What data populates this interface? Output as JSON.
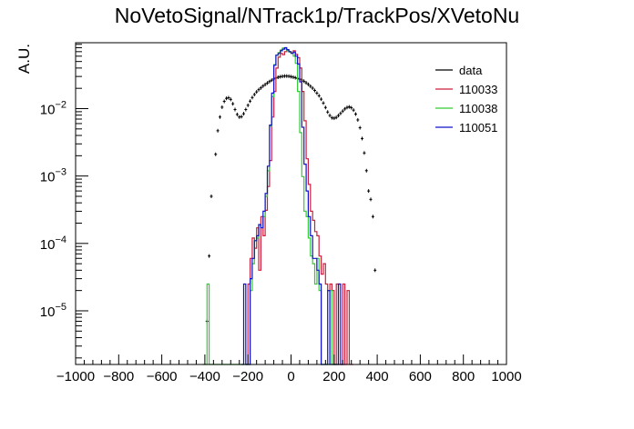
{
  "chart_data": {
    "type": "line",
    "title": "NoVetoSignal/NTrack1p/TrackPos/XVetoNu",
    "xlabel": "",
    "ylabel": "A.U.",
    "xlim": [
      -1000,
      1000
    ],
    "ylim": [
      1.6e-06,
      0.095
    ],
    "yscale": "log",
    "grid": false,
    "legend_position": "top-right",
    "x_ticks": [
      -1000,
      -800,
      -600,
      -400,
      -200,
      0,
      200,
      400,
      600,
      800,
      1000
    ],
    "x_tick_labels": [
      "−1000",
      "−800",
      "−600",
      "−400",
      "−200",
      "0",
      "200",
      "400",
      "600",
      "800",
      "1000"
    ],
    "y_tick_labels": [
      {
        "value": 0.01,
        "base": "10",
        "exp": "−2"
      },
      {
        "value": 0.001,
        "base": "10",
        "exp": "−3"
      },
      {
        "value": 0.0001,
        "base": "10",
        "exp": "−4"
      },
      {
        "value": 1e-05,
        "base": "10",
        "exp": "−5"
      }
    ],
    "series": [
      {
        "name": "data",
        "style": "points",
        "color": "#000000",
        "x": [
          -390,
          -380,
          -370,
          -350,
          -340,
          -330,
          -320,
          -310,
          -300,
          -290,
          -280,
          -270,
          -260,
          -250,
          -240,
          -230,
          -220,
          -210,
          -200,
          -190,
          -180,
          -170,
          -160,
          -150,
          -140,
          -130,
          -120,
          -110,
          -100,
          -90,
          -80,
          -70,
          -60,
          -50,
          -40,
          -30,
          -20,
          -10,
          0,
          10,
          20,
          30,
          40,
          50,
          60,
          70,
          80,
          90,
          100,
          110,
          120,
          130,
          140,
          150,
          160,
          170,
          180,
          190,
          200,
          210,
          220,
          230,
          240,
          250,
          260,
          270,
          280,
          290,
          300,
          310,
          320,
          330,
          340,
          350,
          360,
          370,
          380,
          390,
          400
        ],
        "y": [
          7e-06,
          6.5e-05,
          0.0005,
          0.0021,
          0.0047,
          0.0075,
          0.0105,
          0.0128,
          0.0142,
          0.0145,
          0.0137,
          0.0118,
          0.0097,
          0.0082,
          0.0075,
          0.0076,
          0.0084,
          0.0097,
          0.0112,
          0.0129,
          0.0146,
          0.0162,
          0.0177,
          0.0191,
          0.0203,
          0.0216,
          0.0228,
          0.024,
          0.0252,
          0.0264,
          0.0275,
          0.0284,
          0.0292,
          0.0297,
          0.0301,
          0.0304,
          0.0304,
          0.0302,
          0.0298,
          0.0293,
          0.0287,
          0.0281,
          0.0274,
          0.0266,
          0.0255,
          0.0242,
          0.0229,
          0.0215,
          0.0201,
          0.0186,
          0.017,
          0.0155,
          0.0138,
          0.0121,
          0.0104,
          0.0089,
          0.0079,
          0.0073,
          0.0072,
          0.0074,
          0.0079,
          0.0085,
          0.0092,
          0.0099,
          0.0104,
          0.0106,
          0.0103,
          0.0095,
          0.0083,
          0.0068,
          0.0052,
          0.0036,
          0.0022,
          0.0012,
          0.0006,
          0.00045,
          0.00025,
          4e-05,
          0
        ]
      },
      {
        "name": "110033",
        "style": "histogram",
        "color": "#cc1f3c",
        "bin_edges": [
          -210,
          -200,
          -190,
          -180,
          -170,
          -160,
          -150,
          -140,
          -130,
          -120,
          -110,
          -100,
          -90,
          -80,
          -70,
          -60,
          -50,
          -40,
          -30,
          -20,
          -10,
          0,
          10,
          20,
          30,
          40,
          50,
          60,
          70,
          80,
          90,
          100,
          110,
          120,
          130,
          140,
          150,
          160,
          170,
          180,
          190,
          200,
          210,
          220,
          230,
          240,
          250,
          260,
          270,
          280,
          290
        ],
        "values": [
          0,
          2.5e-05,
          6e-05,
          0.00012,
          8.5e-05,
          0.00017,
          4e-05,
          0.00025,
          0.00013,
          0.00031,
          0.0007,
          0.0017,
          0.0075,
          0.018,
          0.04,
          0.058,
          0.066,
          0.063,
          0.07,
          0.073,
          0.07,
          0.067,
          0.072,
          0.064,
          0.057,
          0.04,
          0.018,
          0.0066,
          0.0018,
          0.00075,
          0.0003,
          0.00022,
          0.00015,
          0.00013,
          6.5e-05,
          3.5e-05,
          5e-05,
          2.5e-05,
          2e-05,
          2.5e-05,
          2e-05,
          0,
          2.5e-05,
          0,
          0,
          2.5e-05,
          0,
          2e-05,
          0,
          0
        ]
      },
      {
        "name": "110038",
        "style": "histogram",
        "color": "#33cc33",
        "bin_edges": [
          -410,
          -400,
          -390,
          -380,
          -370,
          -360,
          -350,
          -340,
          -330,
          -320,
          -310,
          -300,
          -290,
          -280,
          -270,
          -260,
          -250,
          -240,
          -230,
          -220,
          -210,
          -200,
          -190,
          -180,
          -170,
          -160,
          -150,
          -140,
          -130,
          -120,
          -110,
          -100,
          -90,
          -80,
          -70,
          -60,
          -50,
          -40,
          -30,
          -20,
          -10,
          0,
          10,
          20,
          30,
          40,
          50,
          60,
          70,
          80,
          90,
          100,
          110,
          120,
          130,
          140,
          150,
          160,
          170,
          180,
          190,
          200,
          210,
          220
        ],
        "values": [
          0,
          0,
          2.5e-05,
          0,
          0,
          0,
          0,
          0,
          0,
          0,
          0,
          0,
          0,
          0,
          0,
          0,
          0,
          0,
          0,
          0,
          0,
          0,
          2e-05,
          5e-05,
          0.00011,
          0.00012,
          0.00019,
          0.00017,
          0.00025,
          0.0005,
          0.0012,
          0.0055,
          0.015,
          0.045,
          0.062,
          0.068,
          0.074,
          0.079,
          0.077,
          0.072,
          0.069,
          0.066,
          0.06,
          0.047,
          0.018,
          0.0044,
          0.00098,
          0.0003,
          0.00025,
          0.00012,
          6.5e-05,
          5e-05,
          2.5e-05,
          6e-05,
          2e-05,
          0,
          0,
          0,
          0,
          2e-05,
          0,
          0,
          0
        ]
      },
      {
        "name": "110051",
        "style": "histogram",
        "color": "#1111cc",
        "bin_edges": [
          -230,
          -220,
          -210,
          -200,
          -190,
          -180,
          -170,
          -160,
          -150,
          -140,
          -130,
          -120,
          -110,
          -100,
          -90,
          -80,
          -70,
          -60,
          -50,
          -40,
          -30,
          -20,
          -10,
          0,
          10,
          20,
          30,
          40,
          50,
          60,
          70,
          80,
          90,
          100,
          110,
          120,
          130,
          140,
          150,
          160,
          170,
          180,
          190,
          200,
          210,
          220,
          230,
          240,
          250
        ],
        "values": [
          0,
          2.5e-05,
          0,
          0,
          3e-05,
          6e-05,
          0.00011,
          0.00013,
          0.00019,
          0.00017,
          0.0003,
          0.00055,
          0.0014,
          0.0057,
          0.017,
          0.044,
          0.062,
          0.066,
          0.072,
          0.076,
          0.08,
          0.075,
          0.07,
          0.066,
          0.069,
          0.06,
          0.046,
          0.025,
          0.0053,
          0.0015,
          0.0006,
          0.00025,
          0.00013,
          6e-05,
          6e-05,
          4e-05,
          2.5e-05,
          0,
          0,
          0,
          2e-05,
          0,
          0,
          0,
          0,
          2.5e-05,
          0,
          0
        ]
      }
    ]
  }
}
